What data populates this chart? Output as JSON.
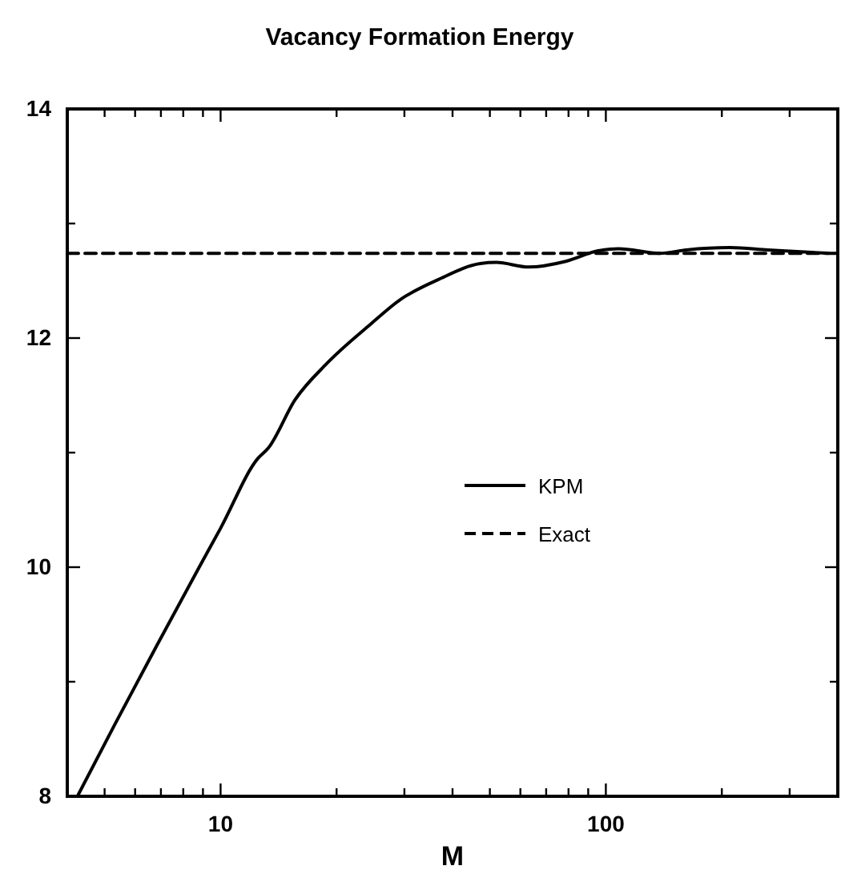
{
  "chart_data": {
    "type": "line",
    "title": "Vacancy Formation Energy",
    "xlabel": "M",
    "log": "x",
    "xlim": [
      4,
      400
    ],
    "ylim": [
      8,
      14
    ],
    "xticks": [
      {
        "value": 5,
        "label": null
      },
      {
        "value": 6,
        "label": null
      },
      {
        "value": 7,
        "label": null
      },
      {
        "value": 8,
        "label": null
      },
      {
        "value": 9,
        "label": null
      },
      10,
      {
        "value": 20,
        "label": null
      },
      {
        "value": 30,
        "label": null
      },
      {
        "value": 40,
        "label": null
      },
      {
        "value": 50,
        "label": null
      },
      {
        "value": 60,
        "label": null
      },
      {
        "value": 70,
        "label": null
      },
      {
        "value": 80,
        "label": null
      },
      {
        "value": 90,
        "label": null
      },
      100,
      {
        "value": 200,
        "label": null
      },
      {
        "value": 300,
        "label": null
      }
    ],
    "yticks": [
      8,
      {
        "value": 9,
        "label": null
      },
      10,
      {
        "value": 11,
        "label": null
      },
      12,
      {
        "value": 13,
        "label": null
      },
      14
    ],
    "legend": "right",
    "grid": false,
    "series": [
      {
        "name": "KPM",
        "color": "#000000",
        "line_style": "solid",
        "x": [
          4.25,
          5.3,
          6.84,
          8.8,
          10,
          12.5,
          13.3,
          15.6,
          18.9,
          24.3,
          29.4,
          36.7,
          47.2,
          52,
          63,
          78.7,
          95,
          107.8,
          138,
          162,
          210,
          263,
          378
        ],
        "values": [
          8.0,
          8.62,
          9.32,
          10.0,
          10.34,
          10.95,
          11.04,
          11.46,
          11.78,
          12.11,
          12.34,
          12.51,
          12.65,
          12.66,
          12.62,
          12.67,
          12.76,
          12.78,
          12.74,
          12.77,
          12.79,
          12.77,
          12.74
        ]
      },
      {
        "name": "Exact",
        "color": "#000000",
        "line_style": "dashed",
        "x": [
          4,
          400
        ],
        "values": [
          12.74,
          12.74
        ]
      }
    ]
  }
}
